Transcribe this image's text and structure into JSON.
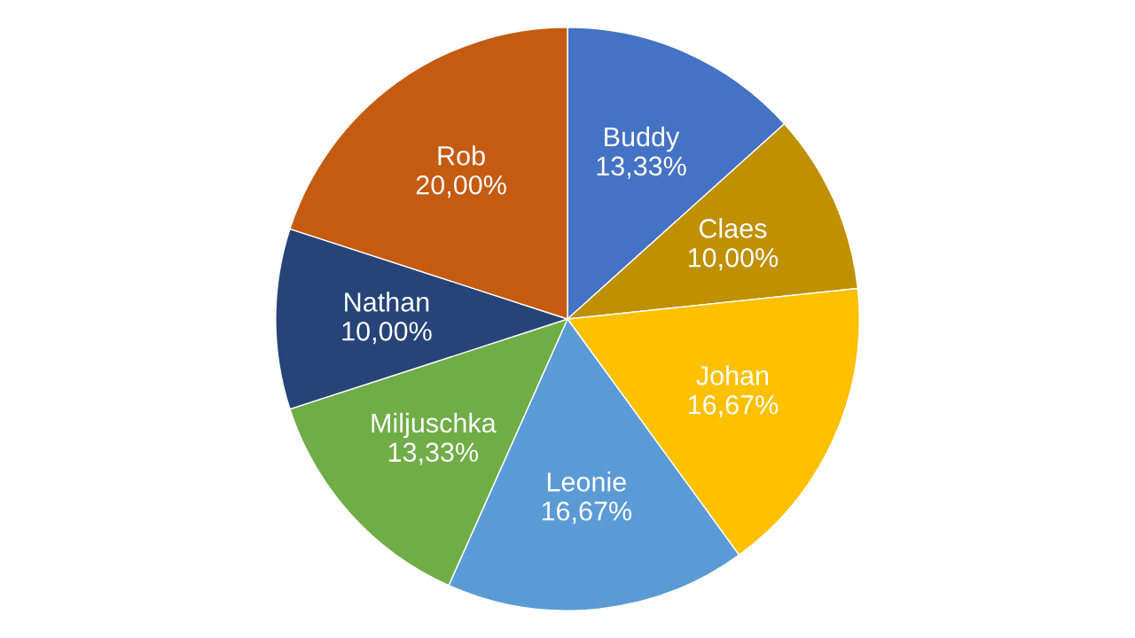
{
  "chart_data": {
    "type": "pie",
    "categories": [
      "Buddy",
      "Claes",
      "Johan",
      "Leonie",
      "Miljuschka",
      "Nathan",
      "Rob"
    ],
    "values": [
      13.33,
      10.0,
      16.67,
      16.67,
      13.33,
      10.0,
      20.0
    ],
    "value_labels": [
      "13,33%",
      "10,00%",
      "16,67%",
      "16,67%",
      "13,33%",
      "10,00%",
      "20,00%"
    ],
    "colors": [
      "#4472c4",
      "#bf9000",
      "#ffc000",
      "#5b9bd5",
      "#70ad47",
      "#264478",
      "#c55a11"
    ],
    "legend": false
  }
}
